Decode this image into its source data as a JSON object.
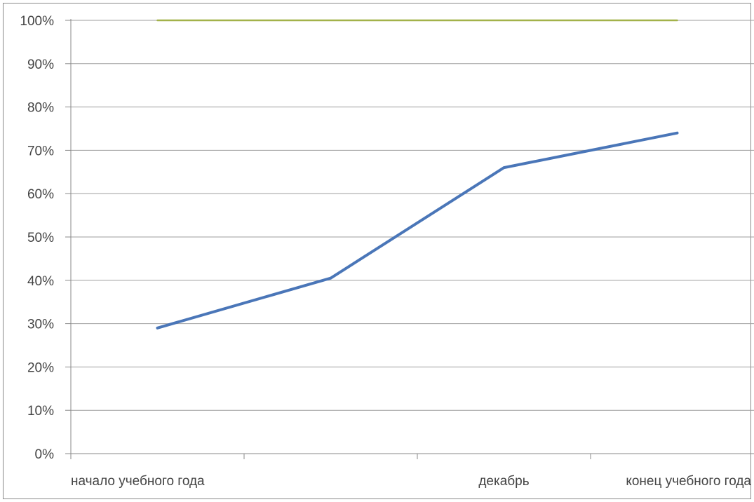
{
  "chart_data": {
    "type": "line",
    "title": "",
    "xlabel": "",
    "ylabel": "",
    "ylim": [
      0,
      100
    ],
    "yticks": [
      "0%",
      "10%",
      "20%",
      "30%",
      "40%",
      "50%",
      "60%",
      "70%",
      "80%",
      "90%",
      "100%"
    ],
    "categories": [
      "начало учебного года",
      "",
      "декабрь",
      "конец учебного года"
    ],
    "grid": true,
    "legend": "none",
    "series": [
      {
        "values": [
          29,
          40.5,
          66,
          74
        ],
        "color": "#4a76b8"
      },
      {
        "values": [
          100,
          100,
          100,
          100
        ],
        "color": "#a3b24a"
      }
    ]
  }
}
